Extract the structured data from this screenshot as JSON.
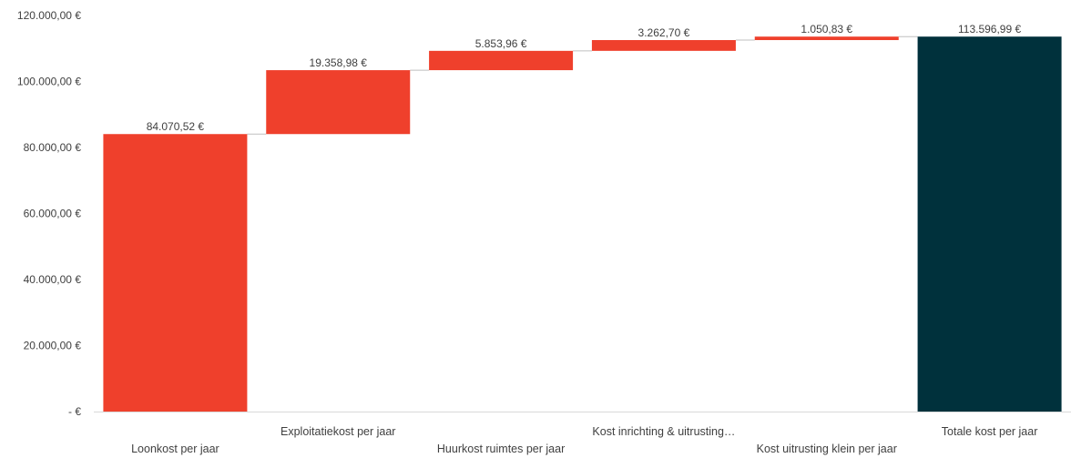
{
  "chart_data": {
    "type": "waterfall",
    "categories": [
      "Loonkost per jaar",
      "Exploitatiekost per jaar",
      "Huurkost ruimtes per jaar",
      "Kost inrichting & uitrusting…",
      "Kost uitrusting klein per jaar",
      "Totale kost per jaar"
    ],
    "values": [
      84070.52,
      19358.98,
      5853.96,
      3262.7,
      1050.83,
      113596.99
    ],
    "value_labels": [
      "84.070,52 €",
      "19.358,98 €",
      "5.853,96 €",
      "3.262,70 €",
      "1.050,83 €",
      "113.596,99 €"
    ],
    "is_total": [
      false,
      false,
      false,
      false,
      false,
      true
    ],
    "ylim": [
      0,
      120000
    ],
    "yticks": [
      0,
      20000,
      40000,
      60000,
      80000,
      100000,
      120000
    ],
    "ytick_labels": [
      "-  €",
      "20.000,00 €",
      "40.000,00 €",
      "60.000,00 €",
      "80.000,00 €",
      "100.000,00 €",
      "120.000,00 €"
    ],
    "grid": false,
    "colors": {
      "increase": "#EF402C",
      "total": "#00313C",
      "axis": "#d9d9d9",
      "connector": "#bfbfbf",
      "text": "#404040"
    }
  }
}
